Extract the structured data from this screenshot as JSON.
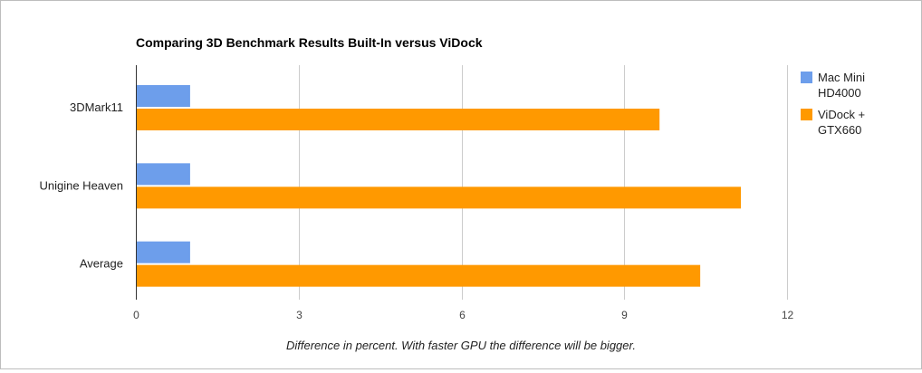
{
  "chart_data": {
    "type": "bar",
    "orientation": "horizontal",
    "title": "Comparing 3D Benchmark Results Built-In versus ViDock",
    "xlabel": "Difference in percent. With faster GPU the difference will be bigger.",
    "ylabel": "",
    "categories": [
      "3DMark11",
      "Unigine Heaven",
      "Average"
    ],
    "series": [
      {
        "name": "Mac Mini HD4000",
        "legend_lines": [
          "Mac Mini",
          "HD4000"
        ],
        "color": "#6d9eeb",
        "values": [
          1,
          1,
          1
        ]
      },
      {
        "name": "ViDock + GTX660",
        "legend_lines": [
          "ViDock +",
          "GTX660"
        ],
        "color": "#ff9900",
        "values": [
          9.65,
          11.15,
          10.4
        ]
      }
    ],
    "xlim": [
      0,
      12
    ],
    "xticks": [
      "0",
      "3",
      "6",
      "9",
      "12"
    ],
    "grid": true,
    "legend_position": "right"
  }
}
